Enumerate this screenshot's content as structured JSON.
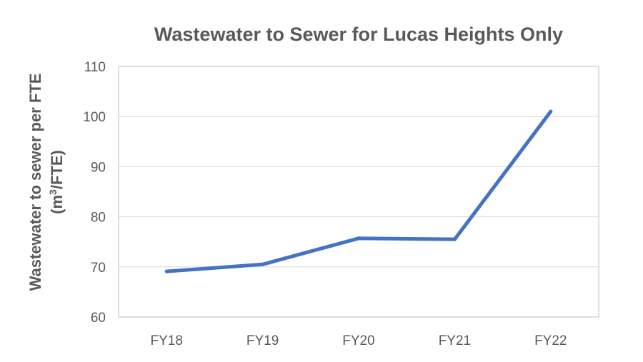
{
  "chart_data": {
    "type": "line",
    "title": "Wastewater to Sewer for Lucas Heights Only",
    "ylabel_line1": "Wastewater to sewer per FTE",
    "ylabel_line2_prefix": "(m",
    "ylabel_line2_sup": "3",
    "ylabel_line2_suffix": "/FTE)",
    "xlabel": "",
    "categories": [
      "FY18",
      "FY19",
      "FY20",
      "FY21",
      "FY22"
    ],
    "series": [
      {
        "values": [
          69.1,
          70.5,
          75.7,
          75.5,
          101.0
        ]
      }
    ],
    "ylim": [
      60,
      110
    ],
    "yticks": [
      60,
      70,
      80,
      90,
      100,
      110
    ],
    "grid": true,
    "colors": {
      "line": "#4472c4",
      "grid": "#d9d9d9",
      "text": "#595959"
    }
  }
}
